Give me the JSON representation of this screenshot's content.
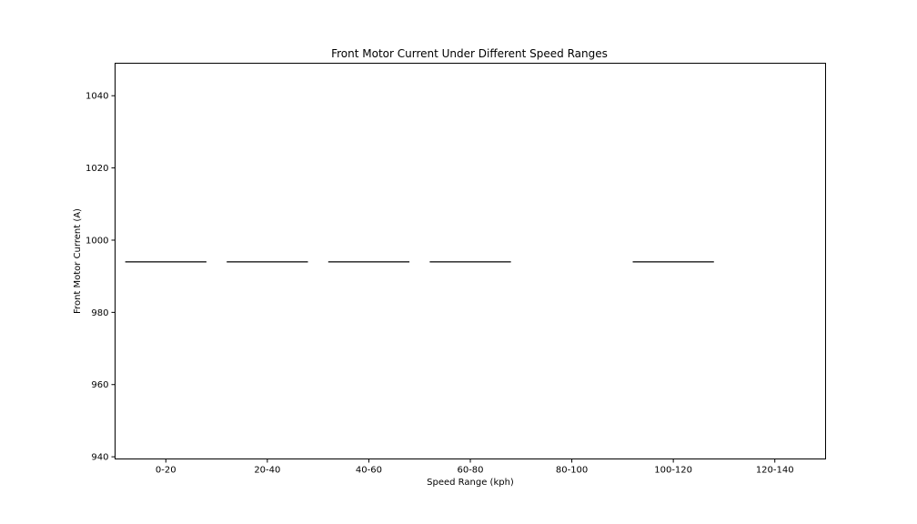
{
  "chart_data": {
    "type": "box",
    "title": "Front Motor Current Under Different Speed Ranges",
    "xlabel": "Speed Range (kph)",
    "ylabel": "Front Motor Current (A)",
    "categories": [
      "0-20",
      "20-40",
      "40-60",
      "60-80",
      "80-100",
      "100-120",
      "120-140"
    ],
    "values": [
      994,
      994,
      994,
      994,
      null,
      994,
      null
    ],
    "ylim": [
      939.4,
      1049
    ],
    "yticks": [
      940,
      960,
      980,
      1000,
      1020,
      1040
    ],
    "grid": false,
    "legend": "none",
    "colors": {
      "box_line": "#3d3d3d",
      "axis": "#000000"
    }
  }
}
